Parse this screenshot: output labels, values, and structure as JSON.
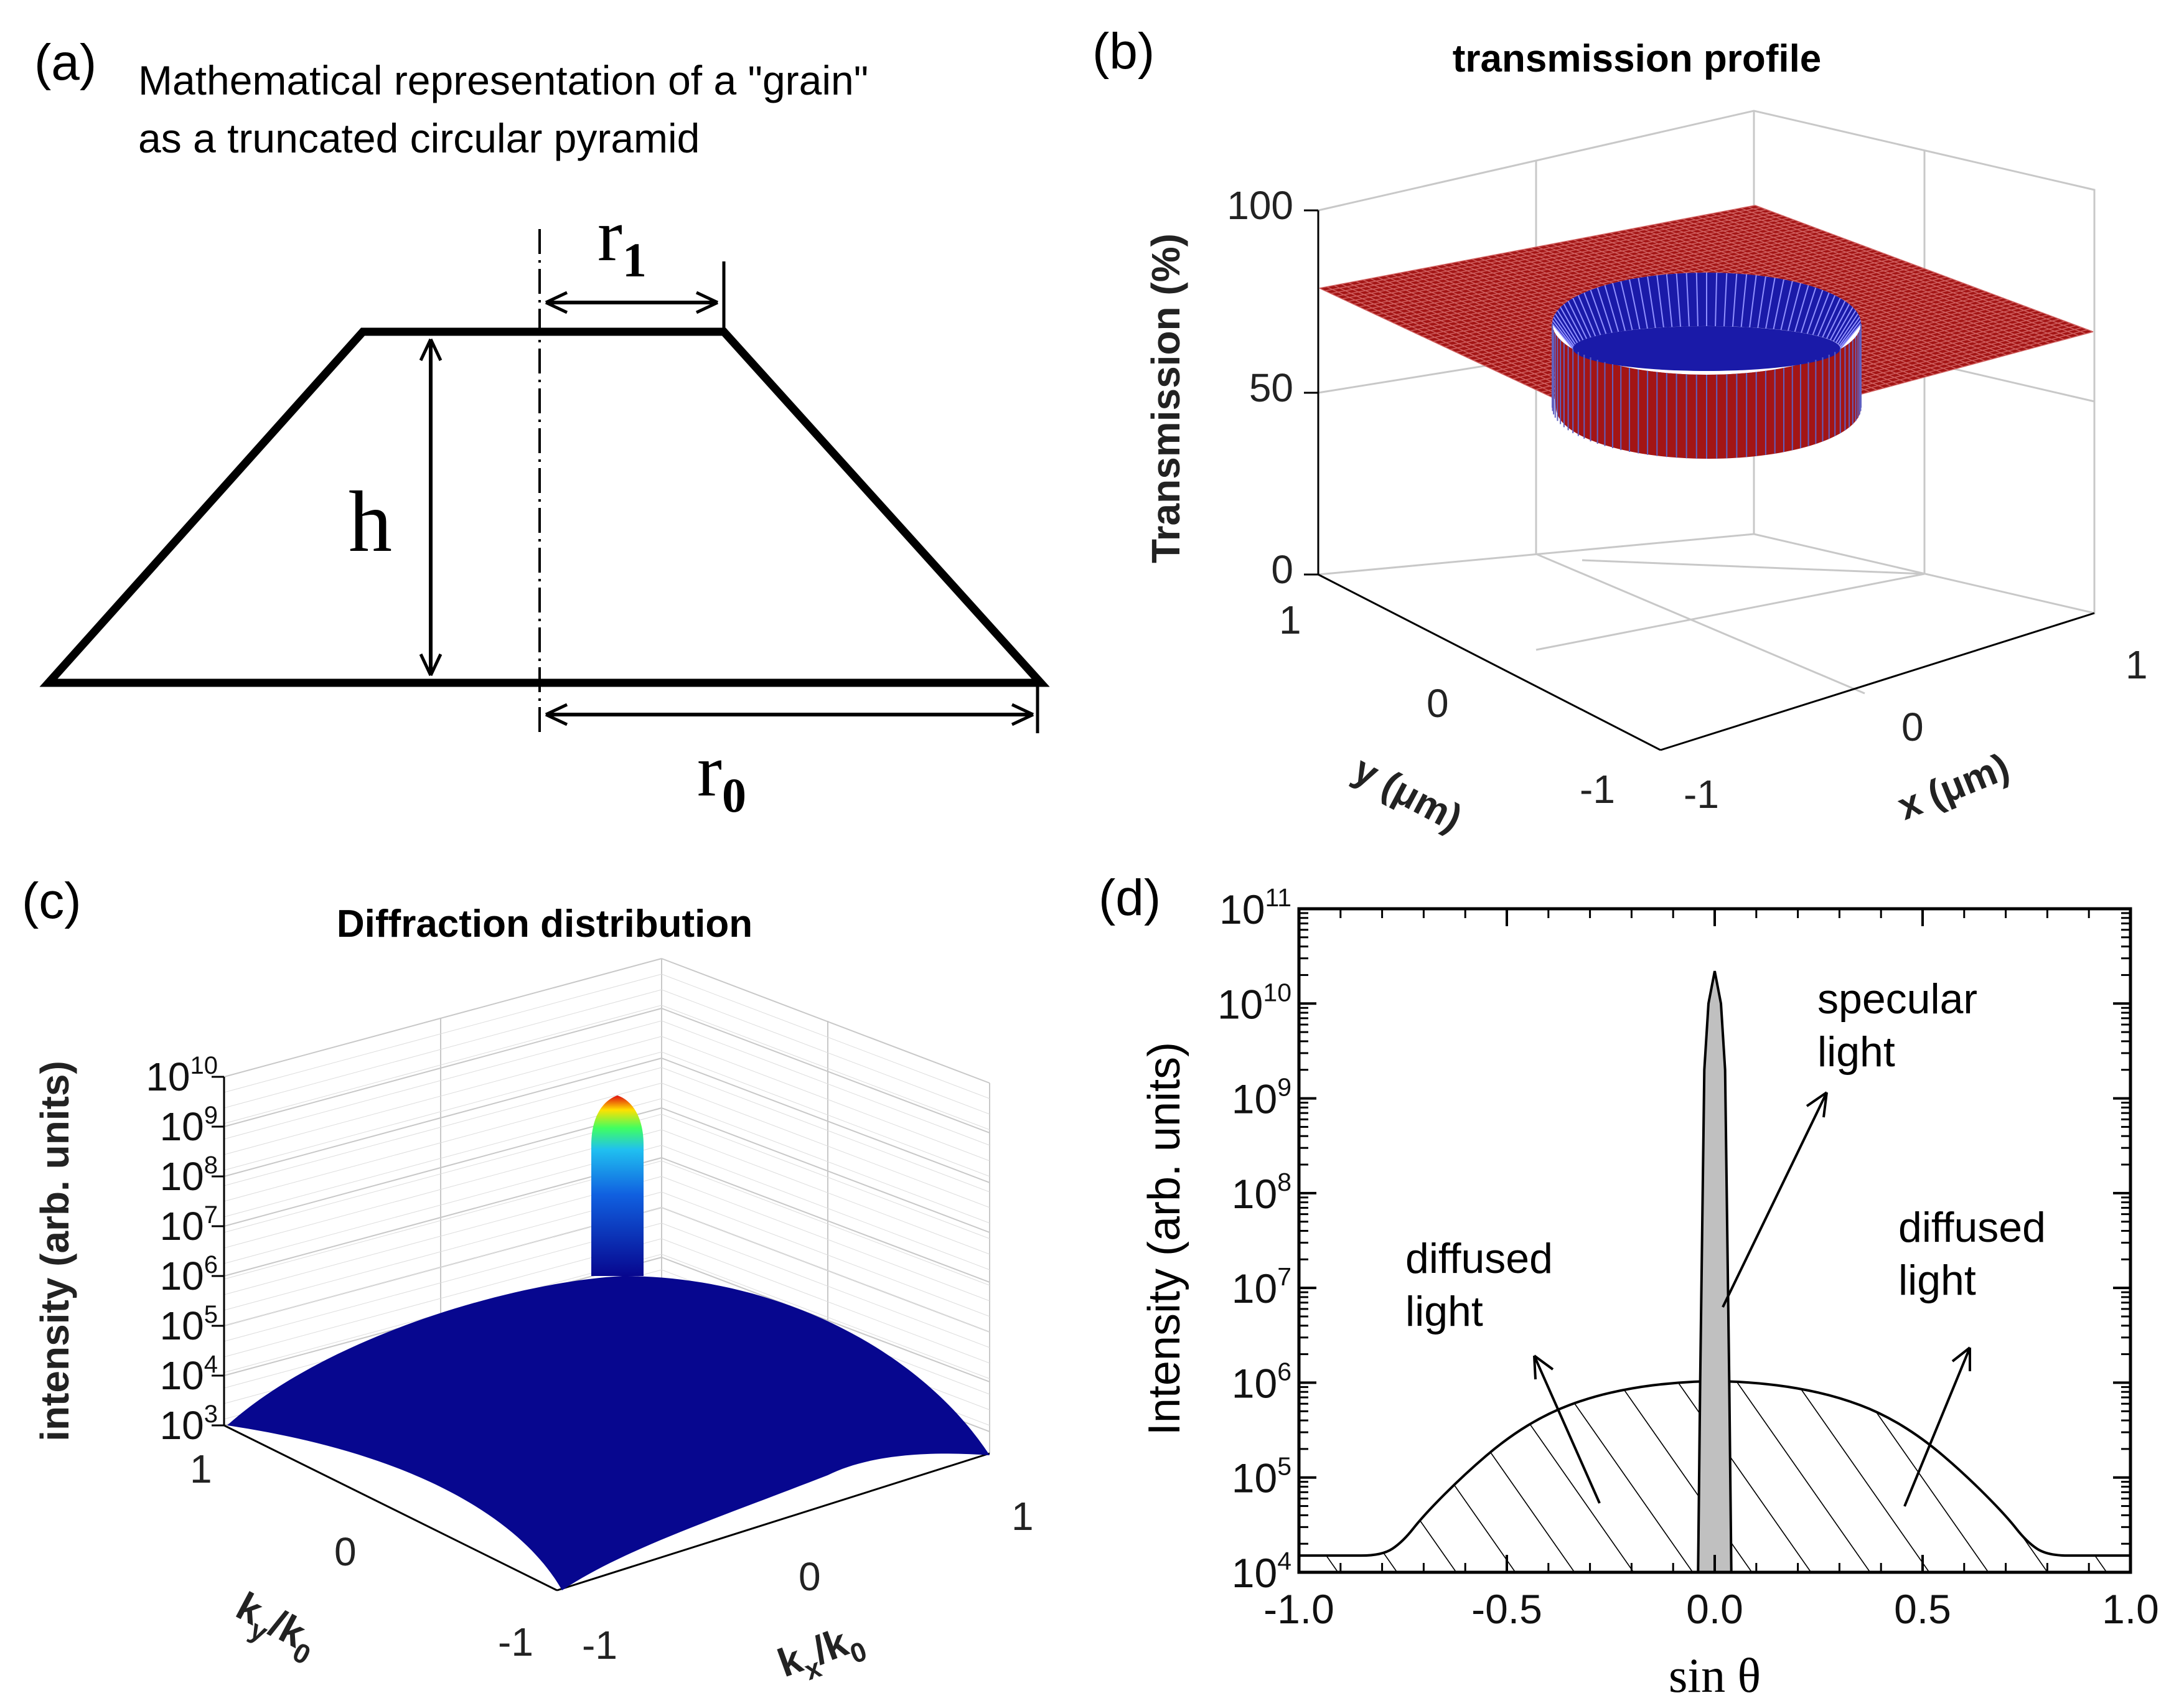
{
  "colors": {
    "surface_red": "#a31515",
    "surface_blue": "#1a1aa8",
    "diffraction_blue": "#07078f",
    "grid_gray": "#c8c8c8",
    "peak_gray": "#c0c0c0"
  },
  "panel_a": {
    "label": "(a)",
    "title_line1": "Mathematical representation of a \"grain\"",
    "title_line2": "as a truncated circular pyramid",
    "r1_label": "r",
    "r1_sub": "1",
    "h_label": "h",
    "r0_label": "r",
    "r0_sub": "0"
  },
  "chart_data": [
    {
      "panel": "(b)",
      "type": "surface3d",
      "title": "transmission profile",
      "zlabel": "Transmission (%)",
      "xlabel": "x (μm)",
      "ylabel": "y (μm)",
      "z_ticks": [
        "0",
        "50",
        "100"
      ],
      "x_ticks": [
        "-1",
        "0",
        "1"
      ],
      "y_ticks": [
        "-1",
        "0",
        "1"
      ],
      "zlim": [
        0,
        100
      ],
      "xlim": [
        -1,
        1
      ],
      "ylim": [
        -1,
        1
      ],
      "plateau_transmission": 78,
      "grain_transmission": 50,
      "grain_radius_um": 0.45
    },
    {
      "panel": "(c)",
      "type": "surface3d",
      "title": "Diffraction distribution",
      "zlabel": "intensity (arb. units)",
      "xlabel": "k_x/k_0",
      "ylabel": "k_y/k_0",
      "z_ticks": [
        "10^3",
        "10^4",
        "10^5",
        "10^6",
        "10^7",
        "10^8",
        "10^9",
        "10^10"
      ],
      "x_ticks": [
        "-1",
        "0",
        "1"
      ],
      "y_ticks": [
        "-1",
        "0",
        "1"
      ],
      "zscale": "log",
      "zlim": [
        1000.0,
        10000000000.0
      ],
      "diffuse_peak": 1000000.0,
      "specular_peak": 10000000000.0
    },
    {
      "panel": "(d)",
      "type": "line",
      "xlabel": "sin θ",
      "ylabel": "Intensity (arb. units)",
      "xlim": [
        -1.0,
        1.0
      ],
      "ylim": [
        10000.0,
        100000000000.0
      ],
      "yscale": "log",
      "x_ticks": [
        "-1.0",
        "-0.5",
        "0.0",
        "0.5",
        "1.0"
      ],
      "y_ticks": [
        "10^4",
        "10^5",
        "10^6",
        "10^7",
        "10^8",
        "10^9",
        "10^10",
        "10^11"
      ],
      "series": [
        {
          "name": "diffused light",
          "x": [
            -1.0,
            -0.9,
            -0.8,
            -0.75,
            -0.7,
            -0.6,
            -0.5,
            -0.4,
            -0.3,
            -0.2,
            -0.1,
            0.0,
            0.1,
            0.2,
            0.3,
            0.4,
            0.5,
            0.6,
            0.7,
            0.75,
            0.8,
            0.9,
            1.0
          ],
          "y": [
            15000,
            15000,
            15000,
            21000,
            40000,
            110000,
            260000,
            480000,
            700000,
            880000,
            1000000,
            1050000,
            1000000,
            880000,
            700000,
            480000,
            260000,
            110000,
            40000,
            21000,
            15000,
            15000,
            15000
          ]
        },
        {
          "name": "specular light",
          "x": [
            -0.04,
            -0.035,
            -0.025,
            -0.015,
            0.0,
            0.015,
            0.025,
            0.035,
            0.04
          ],
          "y": [
            10000,
            1000000,
            2000000000,
            10000000000,
            22000000000,
            10000000000,
            2000000000,
            1000000,
            10000
          ]
        }
      ],
      "annotations": {
        "specular_line1": "specular",
        "specular_line2": "light",
        "diffused_left_line1": "diffused",
        "diffused_left_line2": "light",
        "diffused_right_line1": "diffused",
        "diffused_right_line2": "light"
      }
    }
  ]
}
